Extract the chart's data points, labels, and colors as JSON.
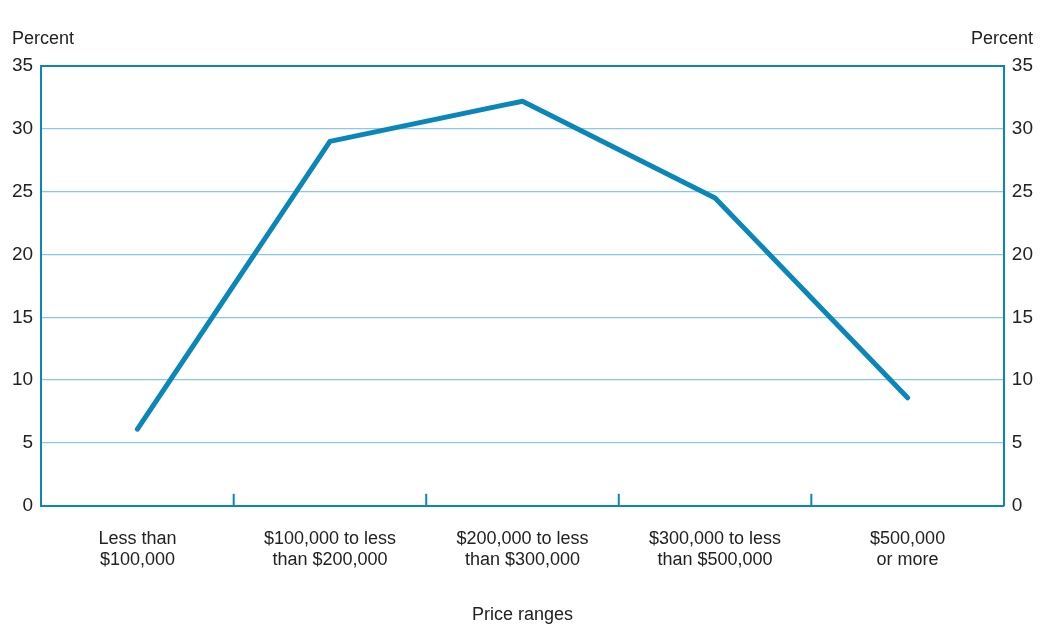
{
  "chart_data": {
    "type": "line",
    "xlabel": "Price ranges",
    "ylabel": "Percent",
    "y2label": "Percent",
    "categories": [
      "Less than $100,000",
      "$100,000 to less than $200,000",
      "$200,000 to less than $300,000",
      "$300,000 to less than $500,000",
      "$500,000 or more"
    ],
    "series": [
      {
        "color": "#0a87b8",
        "values": [
          6.1,
          29.0,
          32.2,
          24.5,
          8.6
        ]
      }
    ],
    "ylim": [
      0,
      35
    ],
    "yticks": [
      0,
      5,
      10,
      15,
      20,
      25,
      30,
      35
    ],
    "y2lim": [
      0,
      35
    ],
    "y2ticks": [
      0,
      5,
      10,
      15,
      20,
      25,
      30,
      35
    ],
    "grid": "y",
    "legend": false,
    "marker": "none",
    "line_style": "solid"
  }
}
